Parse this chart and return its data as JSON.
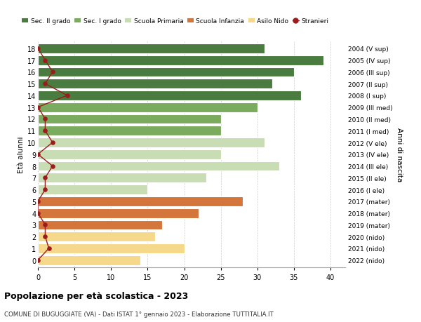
{
  "ages": [
    18,
    17,
    16,
    15,
    14,
    13,
    12,
    11,
    10,
    9,
    8,
    7,
    6,
    5,
    4,
    3,
    2,
    1,
    0
  ],
  "right_labels": [
    "2004 (V sup)",
    "2005 (IV sup)",
    "2006 (III sup)",
    "2007 (II sup)",
    "2008 (I sup)",
    "2009 (III med)",
    "2010 (II med)",
    "2011 (I med)",
    "2012 (V ele)",
    "2013 (IV ele)",
    "2014 (III ele)",
    "2015 (II ele)",
    "2016 (I ele)",
    "2017 (mater)",
    "2018 (mater)",
    "2019 (mater)",
    "2020 (nido)",
    "2021 (nido)",
    "2022 (nido)"
  ],
  "bar_values": [
    31,
    39,
    35,
    32,
    36,
    30,
    25,
    25,
    31,
    25,
    33,
    23,
    15,
    28,
    22,
    17,
    16,
    20,
    14
  ],
  "bar_colors": [
    "#4a7c3f",
    "#4a7c3f",
    "#4a7c3f",
    "#4a7c3f",
    "#4a7c3f",
    "#7aab5e",
    "#7aab5e",
    "#7aab5e",
    "#c8ddb4",
    "#c8ddb4",
    "#c8ddb4",
    "#c8ddb4",
    "#c8ddb4",
    "#d4763b",
    "#d4763b",
    "#d4763b",
    "#f5d88a",
    "#f5d88a",
    "#f5d88a"
  ],
  "stranieri_x": [
    0,
    1,
    2,
    1,
    4,
    0,
    1,
    1,
    2,
    0,
    2,
    1,
    1,
    0,
    0,
    1,
    1,
    1.5,
    0
  ],
  "title": "Popolazione per età scolastica - 2023",
  "subtitle": "COMUNE DI BUGUGGIATE (VA) - Dati ISTAT 1° gennaio 2023 - Elaborazione TUTTITALIA.IT",
  "xlabel_right": "Anni di nascita",
  "ylabel": "Età alunni",
  "xlim": [
    0,
    42
  ],
  "legend_items": [
    {
      "label": "Sec. II grado",
      "color": "#4a7c3f"
    },
    {
      "label": "Sec. I grado",
      "color": "#7aab5e"
    },
    {
      "label": "Scuola Primaria",
      "color": "#c8ddb4"
    },
    {
      "label": "Scuola Infanzia",
      "color": "#d4763b"
    },
    {
      "label": "Asilo Nido",
      "color": "#f5d88a"
    },
    {
      "label": "Stranieri",
      "color": "#9b1c1c"
    }
  ],
  "bar_height": 0.82,
  "background_color": "#ffffff",
  "grid_color": "#cccccc",
  "xticks": [
    0,
    5,
    10,
    15,
    20,
    25,
    30,
    35,
    40
  ]
}
